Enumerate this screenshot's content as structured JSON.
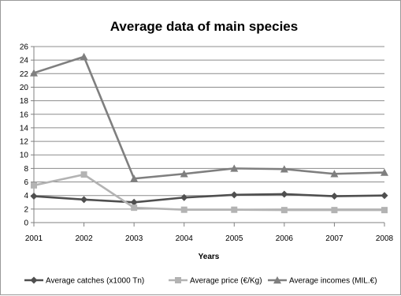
{
  "chart_data": {
    "type": "line",
    "title": "Average data of main species",
    "xlabel": "Years",
    "ylabel": "",
    "categories": [
      "2001",
      "2002",
      "2003",
      "2004",
      "2005",
      "2006",
      "2007",
      "2008"
    ],
    "ylim": [
      0,
      26
    ],
    "yticks": [
      0,
      2,
      4,
      6,
      8,
      10,
      12,
      14,
      16,
      18,
      20,
      22,
      24,
      26
    ],
    "grid": true,
    "legend_position": "bottom",
    "series": [
      {
        "name": "Average catches (x1000 Tn)",
        "color": "#4f4f4f",
        "marker": "diamond",
        "values": [
          3.9,
          3.4,
          3.0,
          3.7,
          4.1,
          4.2,
          3.9,
          4.0
        ]
      },
      {
        "name": "Average price (€/Kg)",
        "color": "#b3b3b3",
        "marker": "square",
        "values": [
          5.5,
          7.1,
          2.2,
          1.9,
          1.9,
          1.85,
          1.85,
          1.85
        ]
      },
      {
        "name": "Average incomes (MIL.€)",
        "color": "#7f7f7f",
        "marker": "triangle",
        "values": [
          22.1,
          24.5,
          6.5,
          7.2,
          8.0,
          7.9,
          7.2,
          7.4
        ]
      }
    ]
  }
}
